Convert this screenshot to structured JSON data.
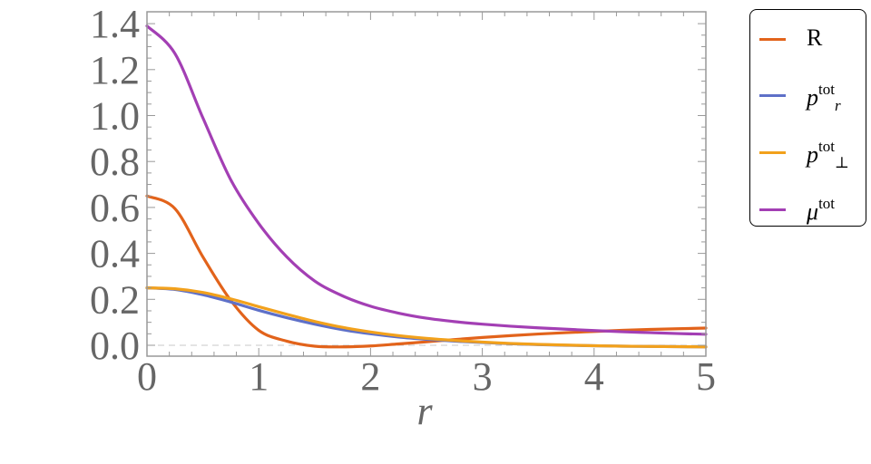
{
  "chart_data": {
    "type": "line",
    "title": "",
    "xlabel": "r",
    "ylabel": "",
    "xlim": [
      0,
      5
    ],
    "ylim": [
      -0.05,
      1.43
    ],
    "x_ticks": [
      "0",
      "1",
      "2",
      "3",
      "4",
      "5"
    ],
    "y_ticks": [
      "0.0",
      "0.2",
      "0.4",
      "0.6",
      "0.8",
      "1.0",
      "1.2",
      "1.4"
    ],
    "grid": false,
    "reference_line": {
      "y": 0,
      "style": "dashed",
      "color": "#C8C8C8"
    },
    "legend_position": "right-outside-top",
    "x": [
      0,
      0.25,
      0.5,
      0.75,
      1.0,
      1.25,
      1.5,
      1.75,
      2.0,
      2.25,
      2.5,
      2.75,
      3.0,
      3.25,
      3.5,
      3.75,
      4.0,
      4.25,
      4.5,
      4.75,
      5.0
    ],
    "series": [
      {
        "name": "R",
        "label_base": "R",
        "label_sup": "",
        "label_sub": "",
        "color": "#E2631B",
        "values": [
          0.65,
          0.595,
          0.385,
          0.195,
          0.065,
          0.018,
          -0.004,
          -0.007,
          -0.003,
          0.006,
          0.015,
          0.025,
          0.034,
          0.042,
          0.049,
          0.055,
          0.06,
          0.065,
          0.069,
          0.072,
          0.075
        ]
      },
      {
        "name": "p^tot_r",
        "label_base": "p",
        "label_sup": "tot",
        "label_sub": "r",
        "color": "#5E70C8",
        "values": [
          0.25,
          0.243,
          0.22,
          0.188,
          0.152,
          0.12,
          0.092,
          0.068,
          0.05,
          0.036,
          0.026,
          0.018,
          0.012,
          0.007,
          0.003,
          0.0,
          -0.002,
          -0.004,
          -0.005,
          -0.006,
          -0.007
        ]
      },
      {
        "name": "p^tot_⊥",
        "label_base": "p",
        "label_sup": "tot",
        "label_sub": "⊥",
        "color": "#F2A11C",
        "values": [
          0.25,
          0.246,
          0.23,
          0.202,
          0.168,
          0.135,
          0.104,
          0.078,
          0.058,
          0.042,
          0.03,
          0.021,
          0.014,
          0.008,
          0.004,
          0.001,
          -0.002,
          -0.004,
          -0.005,
          -0.006,
          -0.007
        ]
      },
      {
        "name": "μ^tot",
        "label_base": "μ",
        "label_sup": "tot",
        "label_sub": "",
        "color": "#A33FB4",
        "values": [
          1.39,
          1.27,
          0.99,
          0.72,
          0.53,
          0.385,
          0.28,
          0.215,
          0.17,
          0.14,
          0.118,
          0.103,
          0.092,
          0.083,
          0.076,
          0.07,
          0.064,
          0.059,
          0.055,
          0.051,
          0.048
        ]
      }
    ]
  },
  "axes": {
    "x_label": "r",
    "frame_color": "#999999",
    "tick_label_color": "#666666"
  },
  "legend": {
    "items": [
      {
        "base": "R",
        "sup": "",
        "sub": "",
        "color": "#E2631B"
      },
      {
        "base": "p",
        "sup": "tot",
        "sub": "r",
        "color": "#5E70C8"
      },
      {
        "base": "p",
        "sup": "tot",
        "sub": "⊥",
        "color": "#F2A11C"
      },
      {
        "base": "μ",
        "sup": "tot",
        "sub": "",
        "color": "#A33FB4"
      }
    ]
  }
}
